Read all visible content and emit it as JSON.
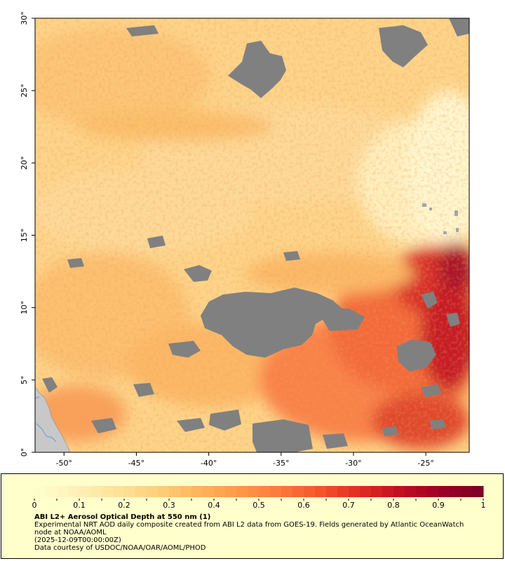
{
  "map": {
    "lon_range": [
      -52,
      -22
    ],
    "lat_range": [
      0,
      30
    ],
    "lon_ticks": [
      {
        "value": -50,
        "label": "-50°"
      },
      {
        "value": -45,
        "label": "-45°"
      },
      {
        "value": -40,
        "label": "-40°"
      },
      {
        "value": -35,
        "label": "-35°"
      },
      {
        "value": -30,
        "label": "-30°"
      },
      {
        "value": -25,
        "label": "-25°"
      }
    ],
    "lat_ticks": [
      {
        "value": 0,
        "label": "0°"
      },
      {
        "value": 5,
        "label": "5°"
      },
      {
        "value": 10,
        "label": "10°"
      },
      {
        "value": 15,
        "label": "15°"
      },
      {
        "value": 20,
        "label": "20°"
      },
      {
        "value": 25,
        "label": "25°"
      },
      {
        "value": 30,
        "label": "30°"
      }
    ],
    "colors": {
      "no_data": "#808080",
      "land": "#c8c8c8",
      "river": "#6699cc"
    }
  },
  "colorbar": {
    "min": 0,
    "max": 1,
    "ticks": [
      {
        "value": 0,
        "label": "0"
      },
      {
        "value": 0.1,
        "label": "0.1"
      },
      {
        "value": 0.2,
        "label": "0.2"
      },
      {
        "value": 0.3,
        "label": "0.3"
      },
      {
        "value": 0.4,
        "label": "0.4"
      },
      {
        "value": 0.5,
        "label": "0.5"
      },
      {
        "value": 0.6,
        "label": "0.6"
      },
      {
        "value": 0.7,
        "label": "0.7"
      },
      {
        "value": 0.8,
        "label": "0.8"
      },
      {
        "value": 0.9,
        "label": "0.9"
      },
      {
        "value": 1,
        "label": "1"
      }
    ],
    "stops": [
      "#ffffcc",
      "#fff0b8",
      "#ffe29a",
      "#fed07a",
      "#feb55c",
      "#fd9948",
      "#fb7a3a",
      "#f4542b",
      "#e02a22",
      "#c00d22",
      "#9b0026",
      "#7a0026"
    ]
  },
  "caption": {
    "title": "ABI L2+ Aerosol Optical Depth at 550 nm (1)",
    "line1": "Experimental NRT AOD daily composite created from ABI L2 data from GOES-19. Fields generated by Atlantic OceanWatch node at NOAA/AOML",
    "line2": "(2025-12-09T00:00:00Z)",
    "line3": "Data courtesy of USDOC/NOAA/OAR/AOML/PHOD"
  }
}
